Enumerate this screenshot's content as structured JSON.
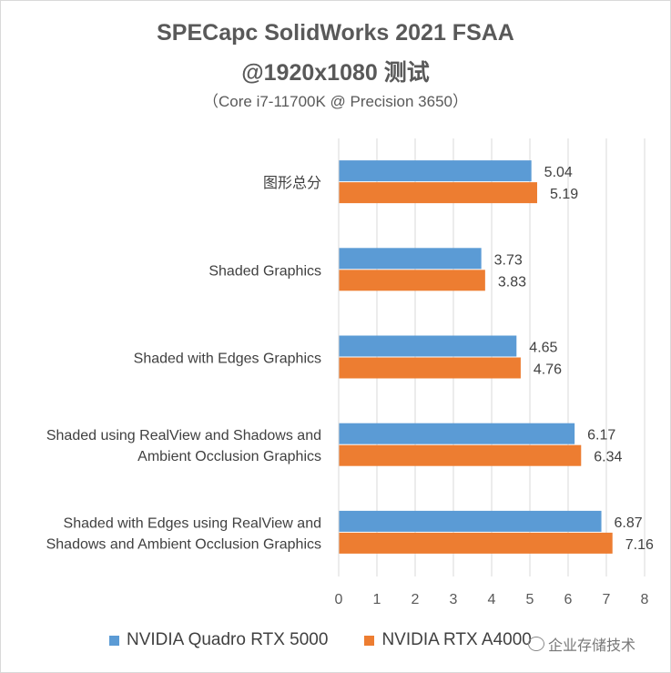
{
  "chart_data": {
    "type": "bar",
    "orientation": "horizontal",
    "title_line1": "SPECapc SolidWorks 2021 FSAA",
    "title_line2": "@1920x1080 测试",
    "subtitle": "（Core i7-11700K @ Precision 3650）",
    "categories": [
      [
        "图形总分"
      ],
      [
        "Shaded Graphics"
      ],
      [
        "Shaded with Edges Graphics"
      ],
      [
        "Shaded using RealView and Shadows and",
        "Ambient Occlusion Graphics"
      ],
      [
        "Shaded with Edges using RealView and",
        "Shadows and Ambient Occlusion Graphics"
      ]
    ],
    "series": [
      {
        "name": "NVIDIA Quadro RTX 5000",
        "color": "#5b9bd5",
        "values": [
          5.04,
          3.73,
          4.65,
          6.17,
          6.87
        ]
      },
      {
        "name": "NVIDIA RTX A4000",
        "color": "#ed7d31",
        "values": [
          5.19,
          3.83,
          4.76,
          6.34,
          7.16
        ]
      }
    ],
    "xlim": [
      0,
      8
    ],
    "xticks": [
      0,
      1,
      2,
      3,
      4,
      5,
      6,
      7,
      8
    ],
    "legend_position": "bottom",
    "grid": true
  },
  "watermark": {
    "text": "企业存储技术"
  }
}
